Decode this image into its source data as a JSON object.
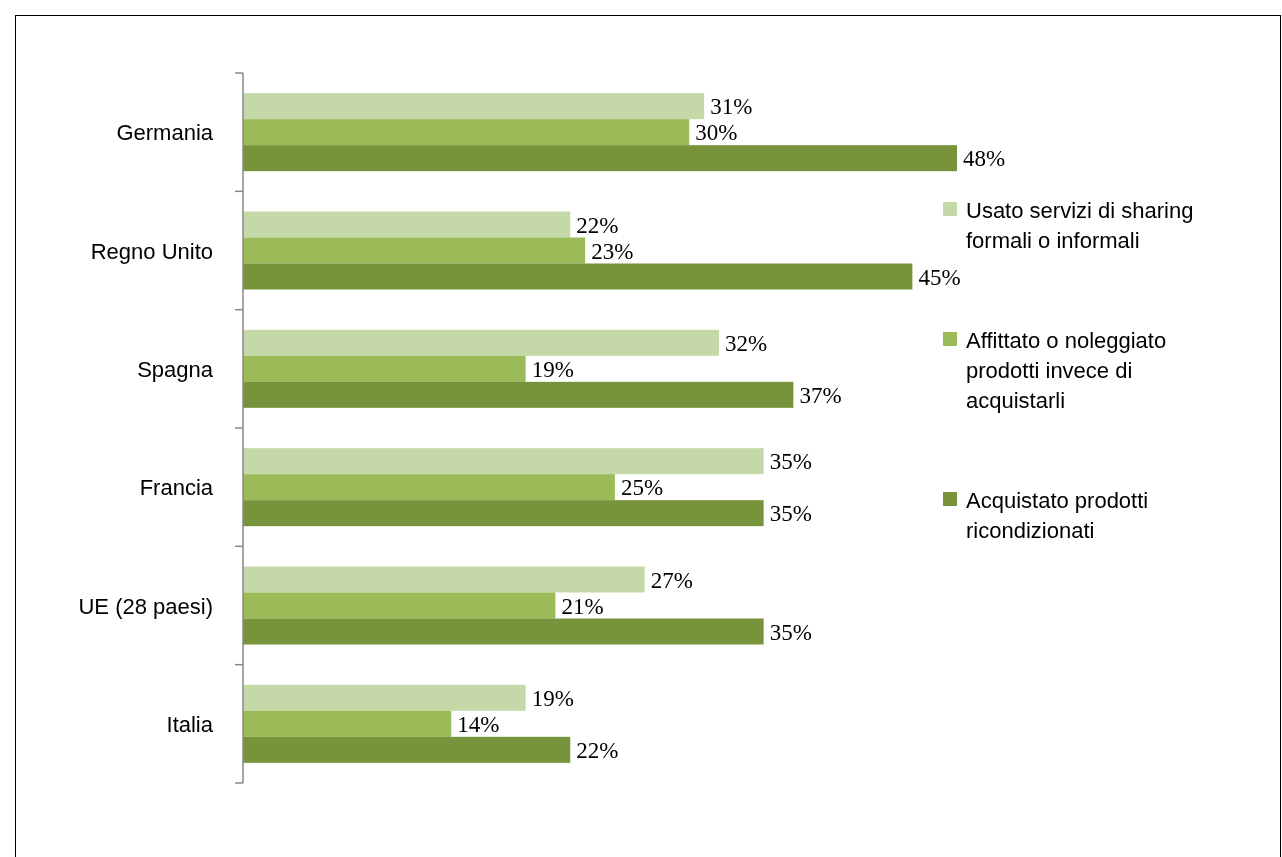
{
  "chart_data": {
    "type": "bar",
    "orientation": "horizontal",
    "categories": [
      "Germania",
      "Regno Unito",
      "Spagna",
      "Francia",
      "UE (28 paesi)",
      "Italia"
    ],
    "series": [
      {
        "name": "Usato servizi di sharing formali o informali",
        "color": "#c5d8a8",
        "values": [
          31,
          22,
          32,
          35,
          27,
          19
        ],
        "value_labels": [
          "31%",
          "22%",
          "32%",
          "35%",
          "27%",
          "19%"
        ]
      },
      {
        "name": "Affittato o noleggiato prodotti invece di acquistarli",
        "color": "#9bbb59",
        "values": [
          30,
          23,
          19,
          25,
          21,
          14
        ],
        "value_labels": [
          "30%",
          "23%",
          "19%",
          "25%",
          "21%",
          "14%"
        ]
      },
      {
        "name": "Acquistato prodotti ricondizionati",
        "color": "#77933c",
        "values": [
          48,
          45,
          37,
          35,
          35,
          22
        ],
        "value_labels": [
          "48%",
          "45%",
          "37%",
          "35%",
          "35%",
          "22%"
        ]
      }
    ],
    "legend": "right"
  }
}
